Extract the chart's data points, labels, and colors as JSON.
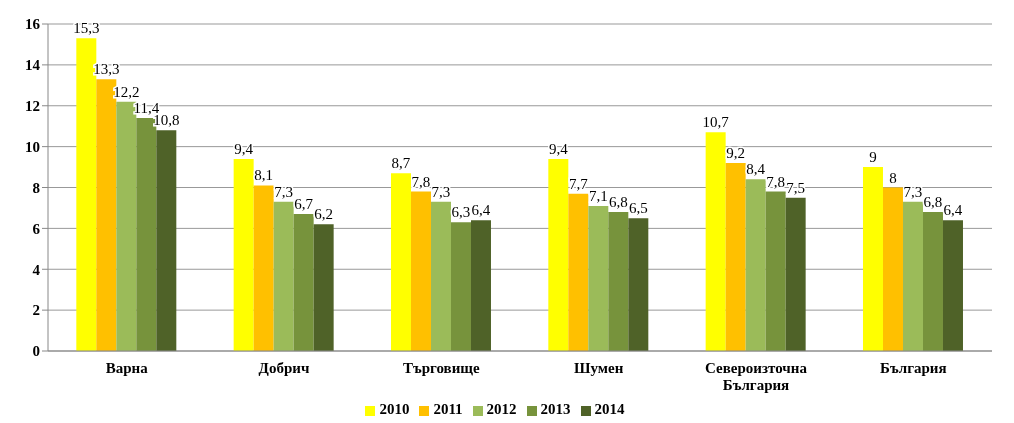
{
  "chart_data": {
    "type": "bar",
    "categories": [
      "Варна",
      "Добрич",
      "Търговище",
      "Шумен",
      "Североизточна България",
      "България"
    ],
    "series": [
      {
        "name": "2010",
        "color": "#ffff00",
        "values": [
          15.3,
          9.4,
          8.7,
          9.4,
          10.7,
          9
        ],
        "value_labels": [
          "15,3",
          "9,4",
          "8,7",
          "9,4",
          "10,7",
          "9"
        ]
      },
      {
        "name": "2011",
        "color": "#ffc000",
        "values": [
          13.3,
          8.1,
          7.8,
          7.7,
          9.2,
          8
        ],
        "value_labels": [
          "13,3",
          "8,1",
          "7,8",
          "7,7",
          "9,2",
          "8"
        ]
      },
      {
        "name": "2012",
        "color": "#9bbb59",
        "values": [
          12.2,
          7.3,
          7.3,
          7.1,
          8.4,
          7.3
        ],
        "value_labels": [
          "12,2",
          "7,3",
          "7,3",
          "7,1",
          "8,4",
          "7,3"
        ]
      },
      {
        "name": "2013",
        "color": "#77933c",
        "values": [
          11.4,
          6.7,
          6.3,
          6.8,
          7.8,
          6.8
        ],
        "value_labels": [
          "11,4",
          "6,7",
          "6,3",
          "6,8",
          "7,8",
          "6,8"
        ]
      },
      {
        "name": "2014",
        "color": "#4f6228",
        "values": [
          10.8,
          6.2,
          6.4,
          6.5,
          7.5,
          6.4
        ],
        "value_labels": [
          "10,8",
          "6,2",
          "6,4",
          "6,5",
          "7,5",
          "6,4"
        ]
      }
    ],
    "ylim": [
      0,
      16
    ],
    "yticks": [
      0,
      2,
      4,
      6,
      8,
      10,
      12,
      14,
      16
    ],
    "grid": "y",
    "legend": "bottom"
  }
}
